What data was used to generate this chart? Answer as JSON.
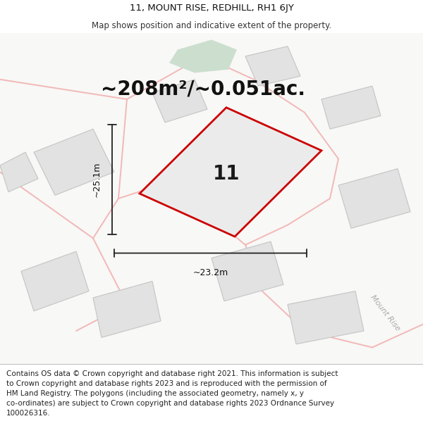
{
  "title": "11, MOUNT RISE, REDHILL, RH1 6JY",
  "subtitle": "Map shows position and indicative extent of the property.",
  "area_label": "~208m²/~0.051ac.",
  "plot_number": "11",
  "dim_width": "~23.2m",
  "dim_height": "~25.1m",
  "road_label": "Mount Rise",
  "footer": "Contains OS data © Crown copyright and database right 2021. This information is subject\nto Crown copyright and database rights 2023 and is reproduced with the permission of\nHM Land Registry. The polygons (including the associated geometry, namely x, y\nco-ordinates) are subject to Crown copyright and database rights 2023 Ordnance Survey\n100026316.",
  "map_bg": "#f8f8f6",
  "building_fill": "#e2e2e2",
  "building_edge": "#c8c8c8",
  "road_color": "#f2b8b8",
  "plot_fill": "#ebebeb",
  "plot_edge": "#cc0000",
  "green_fill": "#ccdece",
  "title_fontsize": 9.5,
  "subtitle_fontsize": 8.5,
  "area_fontsize": 20,
  "plot_num_fontsize": 20,
  "dim_fontsize": 9,
  "footer_fontsize": 7.5,
  "road_label_fontsize": 8
}
